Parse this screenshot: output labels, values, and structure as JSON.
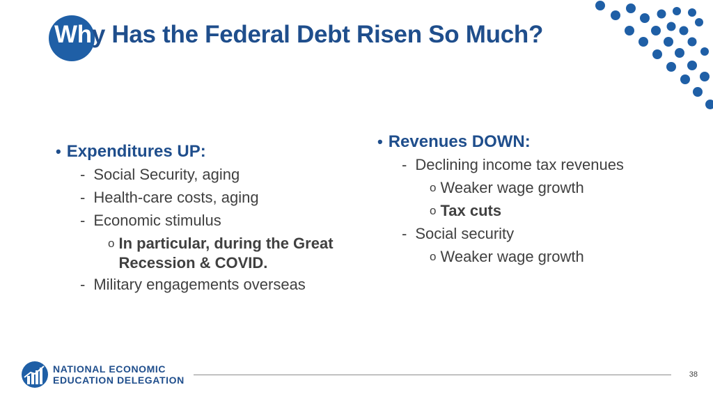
{
  "title": {
    "prefix": "Wh",
    "rest": "y Has the Federal Debt Risen So Much?"
  },
  "left": {
    "heading": "Expenditures UP:",
    "items": [
      "Social Security, aging",
      "Health-care costs, aging",
      "Economic stimulus"
    ],
    "sub": "In particular, during the Great Recession & COVID.",
    "last": "Military engagements overseas"
  },
  "right": {
    "heading": "Revenues DOWN:",
    "item1": "Declining income tax revenues",
    "sub1": "Weaker wage growth",
    "sub2": "Tax cuts",
    "item2": "Social security",
    "sub3": "Weaker wage growth"
  },
  "footer": {
    "logo_line1": "NATIONAL ECONOMIC",
    "logo_line2": "EDUCATION DELEGATION",
    "page_number": "38"
  },
  "colors": {
    "accent": "#1f4e8c",
    "circle": "#1f5fa6",
    "dots": "#1f5fa6"
  }
}
